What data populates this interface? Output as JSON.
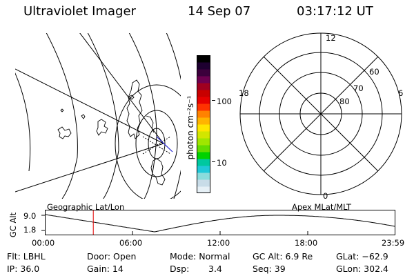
{
  "header": {
    "title": "Ultraviolet Imager",
    "date": "14 Sep 07",
    "time": "03:17:12 UT"
  },
  "colorbar": {
    "units": "photon cm⁻²s⁻¹",
    "ticks": [
      "100",
      "10"
    ],
    "colors": [
      "#e6f0f6",
      "#c8dce8",
      "#8adcdc",
      "#20c8d8",
      "#00c8a0",
      "#00d200",
      "#64dc00",
      "#a0e600",
      "#d2e600",
      "#ffe600",
      "#ffb400",
      "#ff8200",
      "#ff3200",
      "#e60000",
      "#c80000",
      "#a00020",
      "#6e0050",
      "#3c003c",
      "#1e0030",
      "#000000"
    ]
  },
  "polar_plot": {
    "labels": {
      "top": "12",
      "left": "18",
      "right": "6",
      "bottom": "0"
    },
    "lat_labels": [
      "60",
      "70",
      "80"
    ]
  },
  "altitude_plot": {
    "ylabel": "GC Alt",
    "yticks": [
      "9.0",
      "1.8"
    ],
    "left_title": "Geographic Lat/Lon",
    "right_title": "Apex MLat/MLT",
    "xticks": [
      "00:00",
      "06:00",
      "12:00",
      "18:00",
      "23:59"
    ],
    "marker_time": "03:17",
    "trace_color": "#000000",
    "marker_color": "#e00000"
  },
  "status": {
    "flt": "Flt: LBHL",
    "ip": "IP: 36.0",
    "door": "Door: Open",
    "gain": "Gain: 14",
    "mode": "Mode: Normal",
    "dsp_label": "Dsp:",
    "dsp_value": "3.4",
    "gcalt": "GC Alt: 6.9 Re",
    "seq": "Seq: 39",
    "glat": "GLat: −62.9",
    "glon": "GLon: 302.4"
  }
}
